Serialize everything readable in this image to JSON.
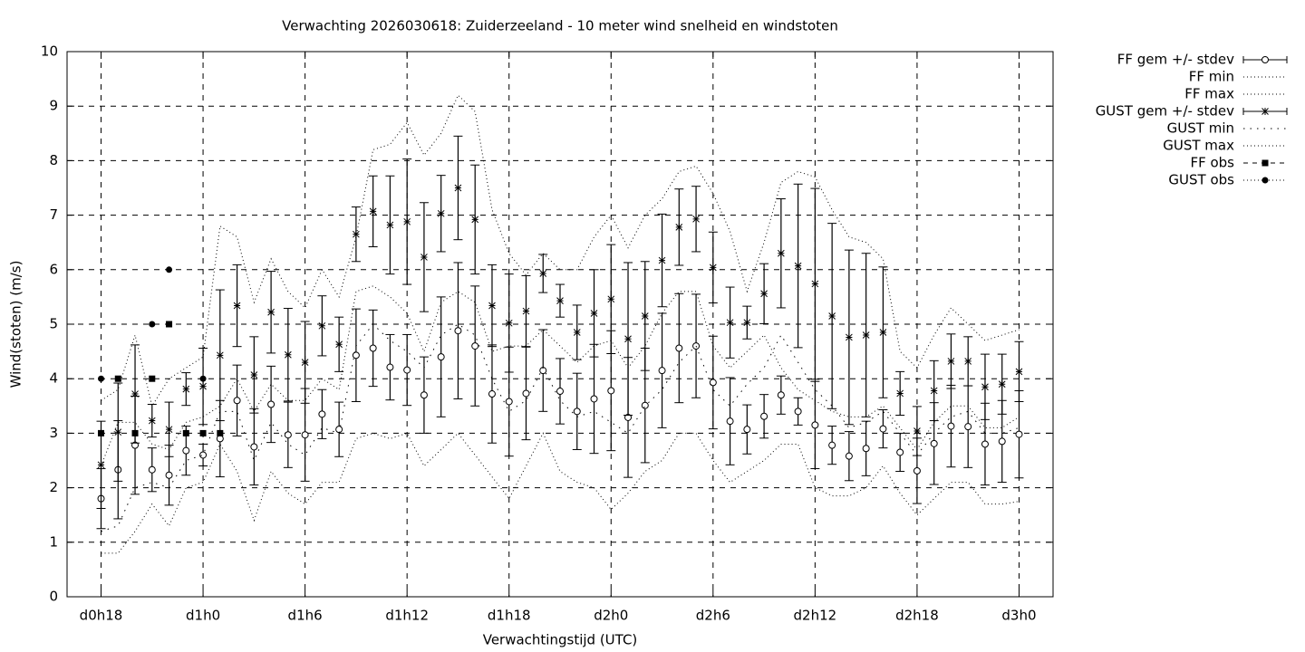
{
  "chart_data": {
    "type": "errorbar",
    "title": "Verwachting 2026030618: Zuiderzeeland - 10 meter wind snelheid en windstoten",
    "x_label": "Verwachtingstijd (UTC)",
    "y_label": "Wind(stoten) (m/s)",
    "xlim": [
      16,
      74
    ],
    "ylim": [
      0,
      10
    ],
    "xticks": [
      {
        "value": 18,
        "label": "d0h18"
      },
      {
        "value": 24,
        "label": "d1h0"
      },
      {
        "value": 30,
        "label": "d1h6"
      },
      {
        "value": 36,
        "label": "d1h12"
      },
      {
        "value": 42,
        "label": "d1h18"
      },
      {
        "value": 48,
        "label": "d2h0"
      },
      {
        "value": 54,
        "label": "d2h6"
      },
      {
        "value": 60,
        "label": "d2h12"
      },
      {
        "value": 66,
        "label": "d2h18"
      },
      {
        "value": 72,
        "label": "d3h0"
      }
    ],
    "yticks": [
      0,
      1,
      2,
      3,
      4,
      5,
      6,
      7,
      8,
      9,
      10
    ],
    "grid": true,
    "legend": "outside-right",
    "x": [
      18,
      19,
      20,
      21,
      22,
      23,
      24,
      25,
      26,
      27,
      28,
      29,
      30,
      31,
      32,
      33,
      34,
      35,
      36,
      37,
      38,
      39,
      40,
      41,
      42,
      43,
      44,
      45,
      46,
      47,
      48,
      49,
      50,
      51,
      52,
      53,
      54,
      55,
      56,
      57,
      58,
      59,
      60,
      61,
      62,
      63,
      64,
      65,
      66,
      67,
      68,
      69,
      70,
      71,
      72
    ],
    "series": [
      {
        "name": "FF gem +/- stdev",
        "style": "errorbar-circle",
        "color": "#000000",
        "values": [
          1.8,
          2.33,
          2.78,
          2.33,
          2.23,
          2.68,
          2.6,
          2.9,
          3.6,
          2.75,
          3.53,
          2.97,
          2.97,
          3.35,
          3.07,
          4.43,
          4.56,
          4.21,
          4.16,
          3.7,
          4.4,
          4.88,
          4.6,
          3.72,
          3.58,
          3.73,
          4.15,
          3.77,
          3.4,
          3.63,
          3.78,
          3.29,
          3.51,
          4.15,
          4.56,
          4.6,
          3.93,
          3.22,
          3.07,
          3.31,
          3.7,
          3.4,
          3.15,
          2.78,
          2.58,
          2.72,
          3.08,
          2.65,
          2.31,
          2.81,
          3.13,
          3.12,
          2.8,
          2.85,
          2.98
        ],
        "errors": [
          0.55,
          0.9,
          0.9,
          0.4,
          0.55,
          0.45,
          0.2,
          0.7,
          0.65,
          0.7,
          0.7,
          0.6,
          0.85,
          0.45,
          0.5,
          0.85,
          0.7,
          0.6,
          0.65,
          0.7,
          1.1,
          1.25,
          1.1,
          0.9,
          1.0,
          0.85,
          0.75,
          0.6,
          0.7,
          1.0,
          1.1,
          1.1,
          1.05,
          1.05,
          1.0,
          0.95,
          0.85,
          0.8,
          0.45,
          0.4,
          0.35,
          0.25,
          0.8,
          0.35,
          0.45,
          0.5,
          0.35,
          0.35,
          0.6,
          0.75,
          0.75,
          0.75,
          0.75,
          0.75,
          0.8
        ]
      },
      {
        "name": "FF min",
        "style": "dotted",
        "color": "#000000",
        "values": [
          0.8,
          0.8,
          1.2,
          1.7,
          1.3,
          2.0,
          2.1,
          2.8,
          2.3,
          1.4,
          2.3,
          1.9,
          1.7,
          2.1,
          2.1,
          2.9,
          3.0,
          2.9,
          3.0,
          2.4,
          2.7,
          3.0,
          2.6,
          2.2,
          1.8,
          2.4,
          3.0,
          2.3,
          2.1,
          2.0,
          1.6,
          1.9,
          2.3,
          2.5,
          3.0,
          3.0,
          2.5,
          2.1,
          2.3,
          2.5,
          2.8,
          2.8,
          2.0,
          1.85,
          1.85,
          2.0,
          2.4,
          1.9,
          1.5,
          1.8,
          2.1,
          2.1,
          1.7,
          1.7,
          1.75
        ]
      },
      {
        "name": "FF max",
        "style": "dotted",
        "color": "#000000",
        "values": [
          2.4,
          3.2,
          3.2,
          2.8,
          2.7,
          3.2,
          3.3,
          3.5,
          4.0,
          3.4,
          3.9,
          3.6,
          3.6,
          4.0,
          3.8,
          5.6,
          5.7,
          5.5,
          5.2,
          4.5,
          5.4,
          5.6,
          5.4,
          4.5,
          4.6,
          4.6,
          4.9,
          4.6,
          4.3,
          4.6,
          4.7,
          4.2,
          4.6,
          5.2,
          5.6,
          5.6,
          4.6,
          4.2,
          4.5,
          4.8,
          4.2,
          3.8,
          3.6,
          3.4,
          3.3,
          3.3,
          3.5,
          3.1,
          2.7,
          3.2,
          3.5,
          3.5,
          3.1,
          3.1,
          3.3
        ]
      },
      {
        "name": "GUST gem +/- stdev",
        "style": "errorbar-star",
        "color": "#000000",
        "values": [
          2.42,
          3.02,
          3.72,
          3.23,
          3.07,
          3.81,
          3.86,
          4.43,
          5.34,
          4.07,
          5.22,
          4.44,
          4.3,
          4.97,
          4.63,
          6.65,
          7.07,
          6.82,
          6.88,
          6.23,
          7.03,
          7.5,
          6.92,
          5.34,
          5.02,
          5.24,
          5.93,
          5.43,
          4.85,
          5.2,
          5.46,
          4.73,
          5.15,
          6.17,
          6.78,
          6.93,
          6.04,
          5.03,
          5.03,
          5.56,
          6.3,
          6.07,
          5.74,
          5.15,
          4.76,
          4.8,
          4.85,
          3.73,
          3.04,
          3.78,
          4.32,
          4.32,
          3.85,
          3.9,
          4.13
        ],
        "errors": [
          0.8,
          0.9,
          0.9,
          0.3,
          0.5,
          0.3,
          0.7,
          1.2,
          0.75,
          0.7,
          0.75,
          0.85,
          0.75,
          0.55,
          0.5,
          0.5,
          0.65,
          0.9,
          1.15,
          1.0,
          0.7,
          0.95,
          1.0,
          0.75,
          0.9,
          0.65,
          0.35,
          0.3,
          0.5,
          0.8,
          1.0,
          1.4,
          1.0,
          0.85,
          0.7,
          0.6,
          0.65,
          0.65,
          0.3,
          0.55,
          1.0,
          1.5,
          1.75,
          1.7,
          1.6,
          1.5,
          1.2,
          0.4,
          0.45,
          0.55,
          0.5,
          0.45,
          0.6,
          0.55,
          0.55
        ]
      },
      {
        "name": "GUST min",
        "style": "sparse-dotted",
        "color": "#000000",
        "values": [
          1.2,
          1.3,
          2.0,
          2.1,
          2.0,
          2.5,
          2.6,
          3.4,
          3.4,
          2.5,
          3.2,
          2.8,
          2.6,
          3.1,
          3.0,
          4.6,
          5.0,
          4.7,
          4.5,
          4.2,
          4.8,
          5.0,
          4.8,
          4.0,
          3.4,
          3.6,
          4.2,
          3.6,
          3.3,
          3.4,
          3.2,
          3.0,
          3.5,
          3.8,
          4.3,
          4.6,
          3.8,
          3.5,
          3.9,
          4.2,
          4.8,
          4.3,
          3.8,
          3.5,
          3.1,
          3.2,
          3.4,
          3.0,
          2.6,
          3.0,
          3.3,
          3.4,
          3.0,
          3.0,
          3.1
        ]
      },
      {
        "name": "GUST max",
        "style": "dotted",
        "color": "#000000",
        "values": [
          3.6,
          3.8,
          4.8,
          3.5,
          4.0,
          4.2,
          4.4,
          6.8,
          6.6,
          5.4,
          6.2,
          5.6,
          5.3,
          6.0,
          5.5,
          6.6,
          8.2,
          8.3,
          8.7,
          8.1,
          8.5,
          9.2,
          8.9,
          7.1,
          6.3,
          5.9,
          6.3,
          6.0,
          6.0,
          6.6,
          7.0,
          6.4,
          7.0,
          7.3,
          7.8,
          7.9,
          7.4,
          6.7,
          5.6,
          6.5,
          7.6,
          7.8,
          7.7,
          7.1,
          6.6,
          6.5,
          6.2,
          4.5,
          4.2,
          4.8,
          5.3,
          5.0,
          4.7,
          4.8,
          4.9
        ]
      },
      {
        "name": "FF obs",
        "style": "points-square",
        "color": "#000000",
        "x": [
          18,
          19,
          20,
          21,
          22,
          23,
          24,
          25
        ],
        "values": [
          3,
          4,
          3,
          4,
          5,
          3,
          3,
          3
        ]
      },
      {
        "name": "GUST obs",
        "style": "points-circle",
        "color": "#000000",
        "x": [
          18,
          21,
          22,
          24
        ],
        "values": [
          4,
          5,
          6,
          4
        ]
      }
    ]
  }
}
